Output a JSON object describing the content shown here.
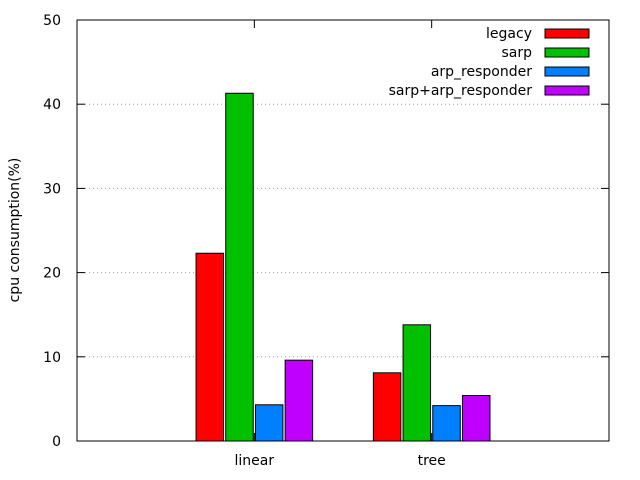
{
  "chart_data": {
    "type": "bar",
    "ylabel": "cpu consumption(%)",
    "xlabel": "",
    "ylim": [
      0,
      50
    ],
    "yticks": [
      0,
      10,
      20,
      30,
      40,
      50
    ],
    "grid": "horizontal dotted",
    "legend_position": "top-right",
    "categories": [
      "linear",
      "tree"
    ],
    "series": [
      {
        "name": "legacy",
        "color": "#ff0000",
        "values": [
          22.3,
          8.1
        ]
      },
      {
        "name": "sarp",
        "color": "#00c000",
        "values": [
          41.3,
          13.8
        ]
      },
      {
        "name": "arp_responder",
        "color": "#0080ff",
        "values": [
          4.3,
          4.2
        ]
      },
      {
        "name": "sarp+arp_responder",
        "color": "#c000ff",
        "values": [
          9.6,
          5.4
        ]
      }
    ]
  }
}
